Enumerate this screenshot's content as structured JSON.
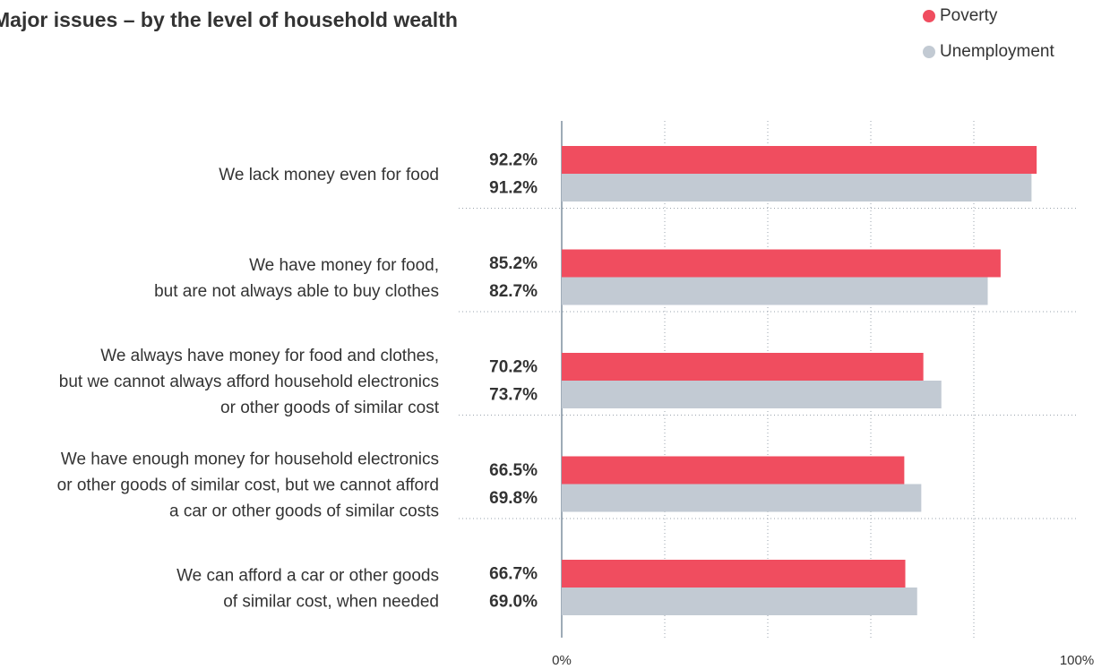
{
  "title": "Major issues – by the level of household wealth",
  "legend": [
    {
      "name": "Poverty",
      "color": "#f04d5f"
    },
    {
      "name": "Unemployment",
      "color": "#c2cad3"
    }
  ],
  "chart_data": {
    "type": "bar",
    "orientation": "horizontal",
    "title": "Major issues – by the level of household wealth",
    "categories": [
      "We lack money even for food",
      "We have money for food,\nbut are not always able to buy clothes",
      "We always have money for food and clothes,\nbut we cannot always afford household electronics\nor other goods of similar cost",
      "We have enough money for household electronics\nor other goods of similar cost, but we cannot afford\na car or other goods of similar costs",
      "We can afford a car or other goods\nof similar cost, when needed"
    ],
    "series": [
      {
        "name": "Poverty",
        "color": "#f04d5f",
        "values": [
          92.2,
          85.2,
          70.2,
          66.5,
          66.7
        ],
        "labels": [
          "92.2%",
          "85.2%",
          "70.2%",
          "66.5%",
          "66.7%"
        ]
      },
      {
        "name": "Unemployment",
        "color": "#c2cad3",
        "values": [
          91.2,
          82.7,
          73.7,
          69.8,
          69.0
        ],
        "labels": [
          "91.2%",
          "82.7%",
          "73.7%",
          "69.8%",
          "69.0%"
        ]
      }
    ],
    "xlim": [
      0,
      100
    ],
    "tick_labels": [
      "0%",
      "100%"
    ],
    "xlabel": "",
    "ylabel": "",
    "grid": true,
    "legend_position": "top-right"
  }
}
